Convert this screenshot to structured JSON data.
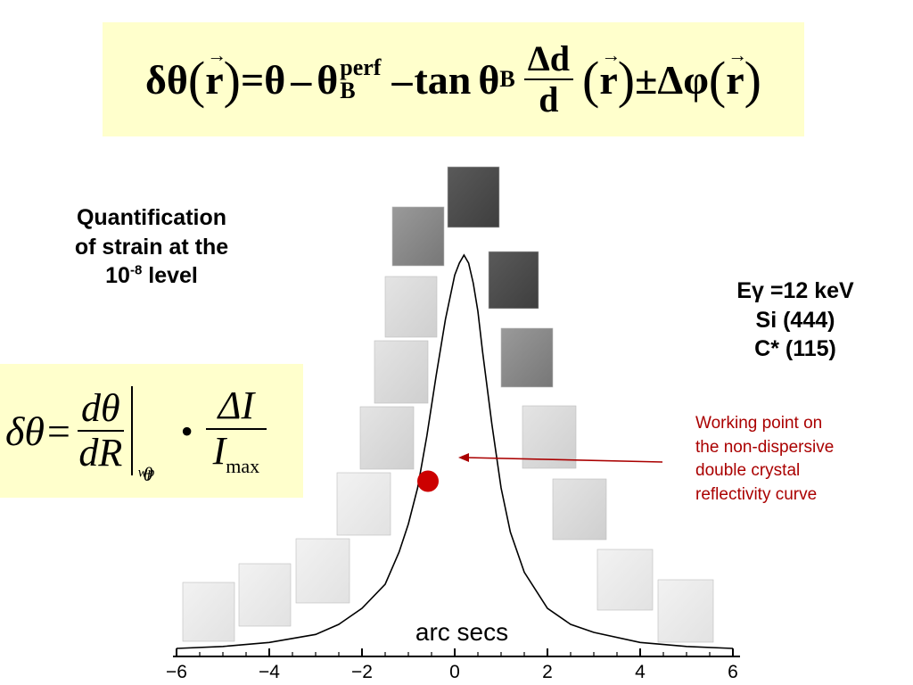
{
  "top_equation": {
    "lhs": "δθ",
    "vec_r": "r",
    "equals": "=",
    "theta": "θ",
    "minus": "–",
    "theta_b": "θ",
    "sup_perf": "perf",
    "sub_b": "B",
    "minus2": "–",
    "tan": "tan",
    "frac_num": "Δd",
    "frac_den": "d",
    "pm": "±",
    "delta_phi": "Δφ"
  },
  "left_equation": {
    "lhs": "δθ=",
    "frac1_num": "dθ",
    "frac1_den": "dR",
    "eval_sub": "θ",
    "eval_sub_wp": "wp",
    "dot": "•",
    "frac2_num": "ΔI",
    "frac2_den": "I",
    "frac2_den_sub": "max"
  },
  "quantification": {
    "line1": "Quantification",
    "line2": "of strain at the",
    "line3_base": "10",
    "line3_exp": "-8",
    "line3_rest": " level"
  },
  "conditions": {
    "line1": "Eγ =12 keV",
    "line2": "Si (444)",
    "line3": "C* (115)"
  },
  "annotation": {
    "line1": "Working point on",
    "line2": "the non-dispersive",
    "line3": "double crystal",
    "line4": "reflectivity curve"
  },
  "colors": {
    "curve": "#000000",
    "working_point": "#cc0000",
    "arrow": "#aa0000",
    "annotation_text": "#aa0000",
    "equation_bg": "#ffffcc"
  },
  "chart_data": {
    "type": "line",
    "xlabel": "arc secs",
    "ylabel": "",
    "xlim": [
      -6,
      6
    ],
    "ylim": [
      0,
      1
    ],
    "xticks": [
      -6,
      -4,
      -2,
      0,
      2,
      4,
      6
    ],
    "grid": false,
    "series": [
      {
        "x": [
          -6,
          -5,
          -4,
          -3,
          -2.5,
          -2,
          -1.5,
          -1.2,
          -1,
          -0.8,
          -0.6,
          -0.4,
          -0.2,
          0,
          0.1,
          0.2,
          0.3,
          0.4,
          0.5,
          0.6,
          0.8,
          1,
          1.2,
          1.5,
          2,
          2.5,
          3,
          4,
          5,
          6
        ],
        "values": [
          0.02,
          0.025,
          0.035,
          0.055,
          0.08,
          0.12,
          0.18,
          0.26,
          0.33,
          0.42,
          0.55,
          0.7,
          0.84,
          0.95,
          0.98,
          1.0,
          0.98,
          0.93,
          0.86,
          0.76,
          0.58,
          0.42,
          0.31,
          0.21,
          0.12,
          0.08,
          0.06,
          0.035,
          0.025,
          0.02
        ]
      }
    ],
    "working_point": {
      "x": -0.5,
      "y": 0.45
    }
  }
}
